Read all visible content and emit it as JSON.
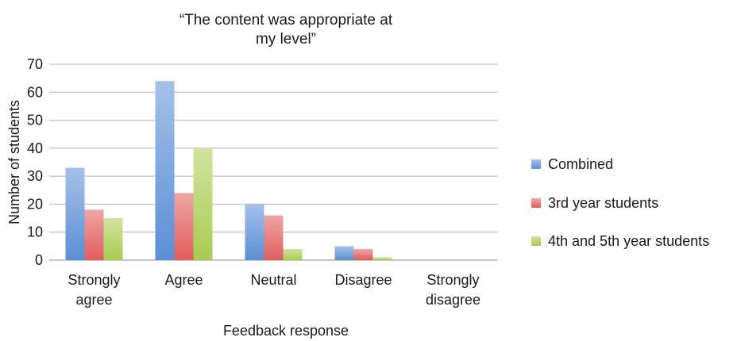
{
  "chart_data": {
    "type": "bar",
    "title": "“The content was appropriate at my level”",
    "xlabel": "Feedback response",
    "ylabel": "Number of students",
    "ylim": [
      0,
      70
    ],
    "yticks": [
      0,
      10,
      20,
      30,
      40,
      50,
      60,
      70
    ],
    "grid": true,
    "legend_position": "right",
    "categories": [
      "Strongly agree",
      "Agree",
      "Neutral",
      "Disagree",
      "Strongly disagree"
    ],
    "series": [
      {
        "name": "Combined",
        "color": "#5b8fd6",
        "values": [
          33,
          64,
          20,
          5,
          0
        ]
      },
      {
        "name": "3rd year students",
        "color": "#e25d5d",
        "values": [
          18,
          24,
          16,
          4,
          0
        ]
      },
      {
        "name": "4th and 5th year students",
        "color": "#a9cc52",
        "values": [
          15,
          40,
          4,
          1,
          0
        ]
      }
    ]
  }
}
